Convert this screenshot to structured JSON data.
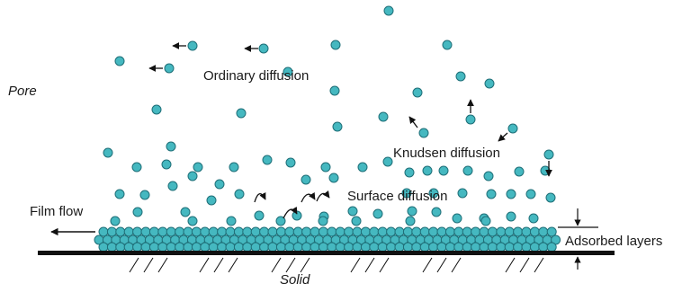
{
  "labels": {
    "pore": "Pore",
    "ordinary_diffusion": "Ordinary diffusion",
    "knudsen_diffusion": "Knudsen diffusion",
    "surface_diffusion": "Surface diffusion",
    "film_flow": "Film flow",
    "adsorbed_layers": "Adsorbed layers",
    "solid": "Solid"
  },
  "colors": {
    "molecule_fill": "#45b8c0",
    "molecule_stroke": "#1f6f78",
    "ink": "#111111"
  }
}
